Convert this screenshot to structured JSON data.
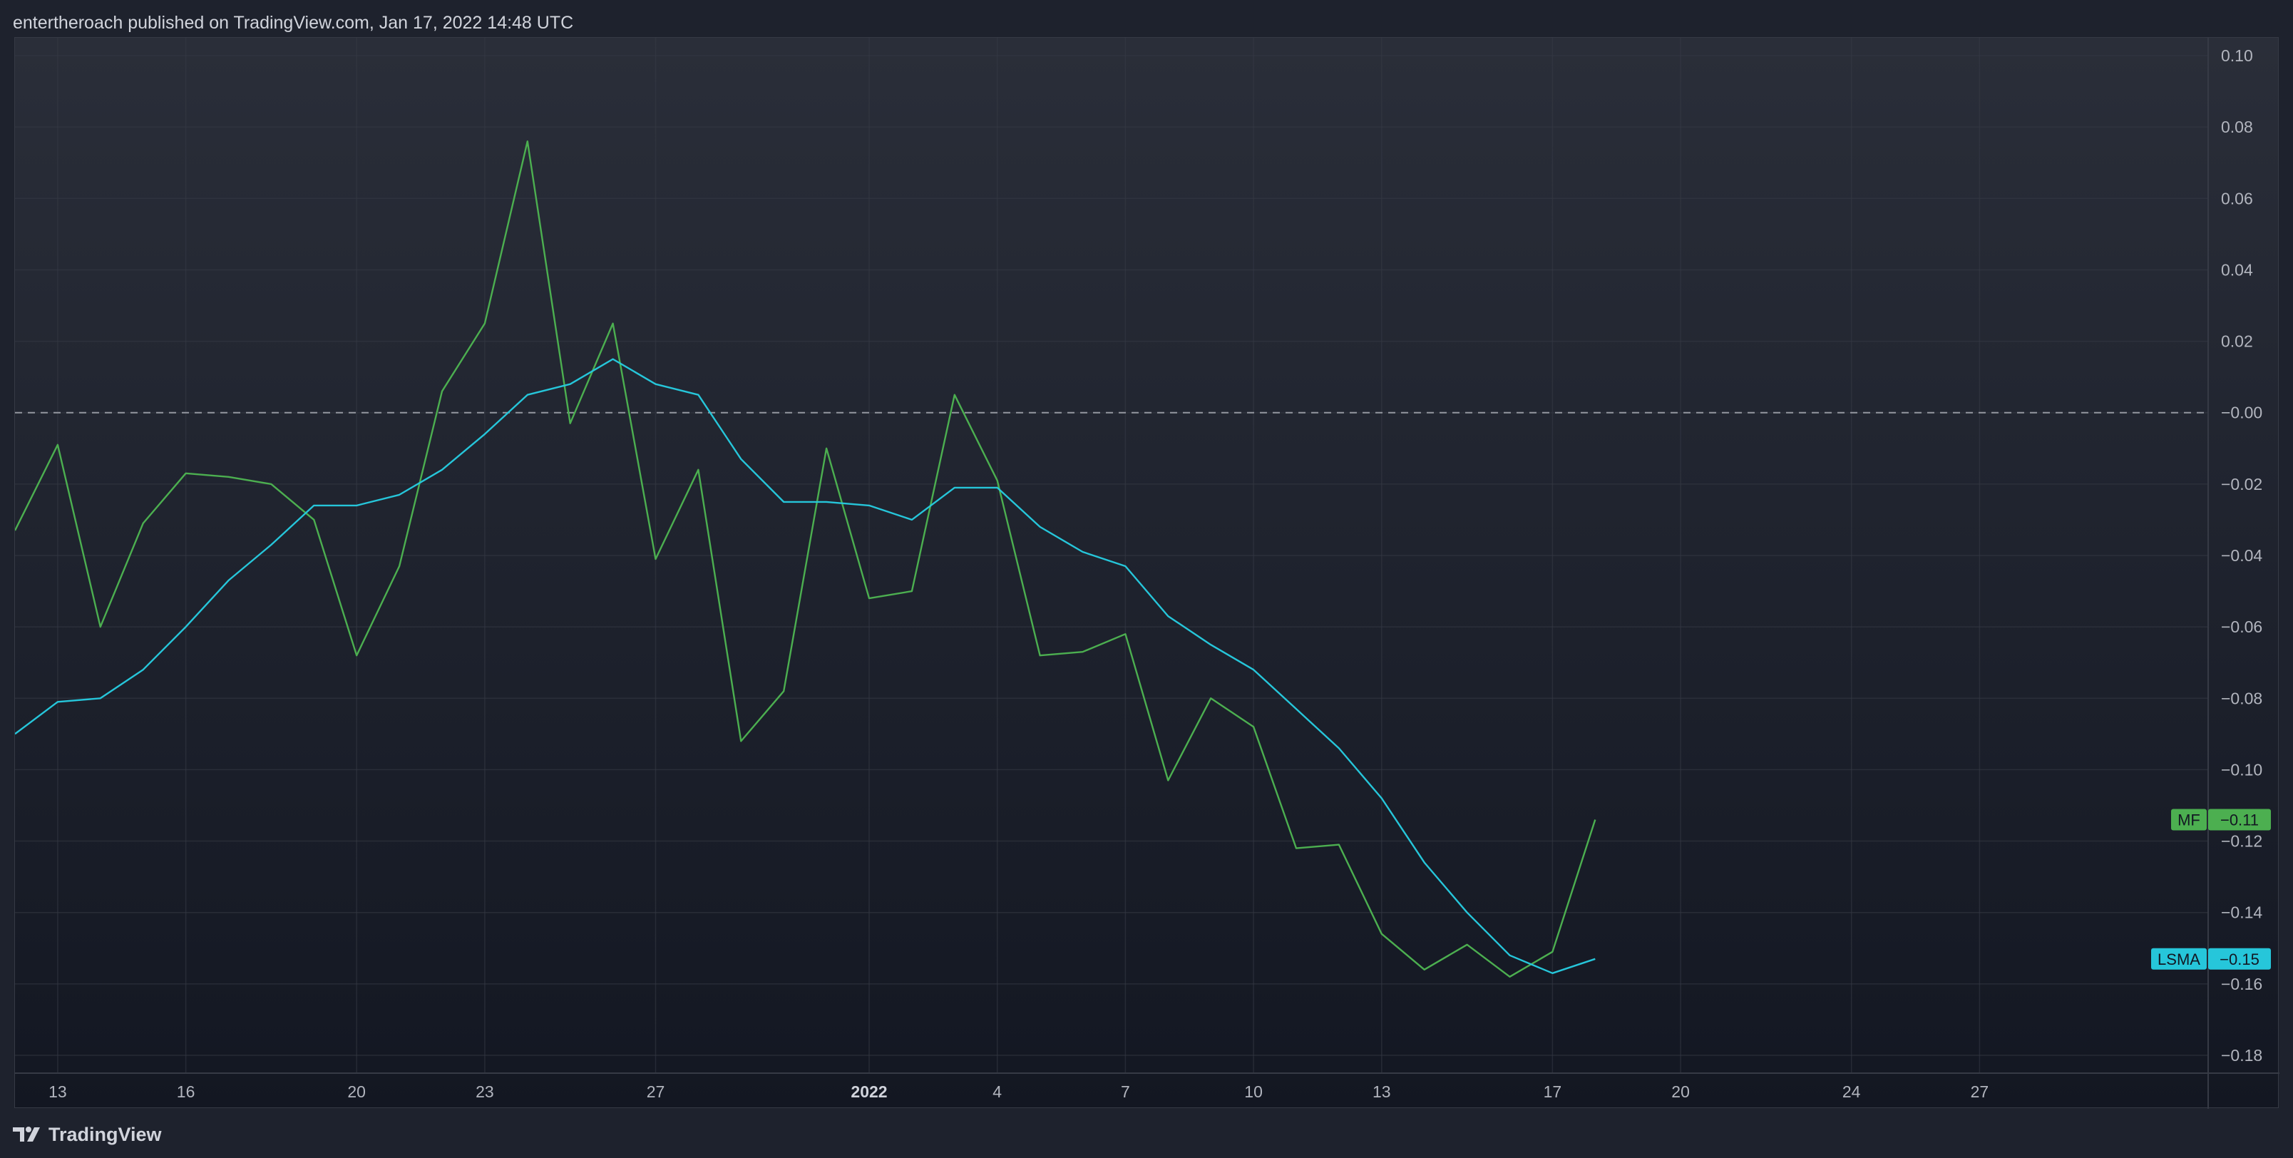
{
  "header": {
    "text": "entertheroach published on TradingView.com, Jan 17, 2022 14:48 UTC"
  },
  "footer": {
    "logo_icon": "tradingview-logo-icon",
    "brand": "TradingView"
  },
  "colors": {
    "mf": "#4caf50",
    "lsma": "#26c6da",
    "zero_line": "#9598a1"
  },
  "chart_data": {
    "type": "line",
    "x_axis_ticks": [
      {
        "label": "13",
        "i": 1
      },
      {
        "label": "16",
        "i": 4
      },
      {
        "label": "20",
        "i": 8
      },
      {
        "label": "23",
        "i": 11
      },
      {
        "label": "27",
        "i": 15
      },
      {
        "label": "2022",
        "i": 20,
        "bold": true
      },
      {
        "label": "4",
        "i": 23
      },
      {
        "label": "7",
        "i": 26
      },
      {
        "label": "10",
        "i": 29
      },
      {
        "label": "13",
        "i": 32
      },
      {
        "label": "17",
        "i": 36
      },
      {
        "label": "20",
        "i": 39
      },
      {
        "label": "24",
        "i": 43
      },
      {
        "label": "27",
        "i": 46
      }
    ],
    "y_ticks": [
      0.1,
      0.08,
      0.06,
      0.04,
      0.02,
      0.0,
      -0.02,
      -0.04,
      -0.06,
      -0.08,
      -0.1,
      -0.12,
      -0.14,
      -0.16,
      -0.18
    ],
    "y_tick_labels": [
      "0.10",
      "0.08",
      "0.06",
      "0.04",
      "0.02",
      "−0.00",
      "−0.02",
      "−0.04",
      "−0.06",
      "−0.08",
      "−0.10",
      "−0.12",
      "−0.14",
      "−0.16",
      "−0.18"
    ],
    "ylim": [
      -0.185,
      0.105
    ],
    "zero_line": 0.0,
    "series": [
      {
        "name": "MF",
        "last_label": "−0.11",
        "color": "#4caf50",
        "values": [
          -0.033,
          -0.009,
          -0.06,
          -0.031,
          -0.017,
          -0.018,
          -0.02,
          -0.03,
          -0.068,
          -0.043,
          0.006,
          0.025,
          0.076,
          -0.003,
          0.025,
          -0.041,
          -0.016,
          -0.092,
          -0.078,
          -0.01,
          -0.052,
          -0.05,
          0.005,
          -0.019,
          -0.068,
          -0.067,
          -0.062,
          -0.103,
          -0.08,
          -0.088,
          -0.122,
          -0.121,
          -0.146,
          -0.156,
          -0.149,
          -0.158,
          -0.151,
          -0.114
        ]
      },
      {
        "name": "LSMA",
        "last_label": "−0.15",
        "color": "#26c6da",
        "values": [
          -0.09,
          -0.081,
          -0.08,
          -0.072,
          -0.06,
          -0.047,
          -0.037,
          -0.026,
          -0.026,
          -0.023,
          -0.016,
          -0.006,
          0.005,
          0.008,
          0.015,
          0.008,
          0.005,
          -0.013,
          -0.025,
          -0.025,
          -0.026,
          -0.03,
          -0.021,
          -0.021,
          -0.032,
          -0.039,
          -0.043,
          -0.057,
          -0.065,
          -0.072,
          -0.083,
          -0.094,
          -0.108,
          -0.126,
          -0.14,
          -0.152,
          -0.157,
          -0.153
        ]
      }
    ]
  }
}
